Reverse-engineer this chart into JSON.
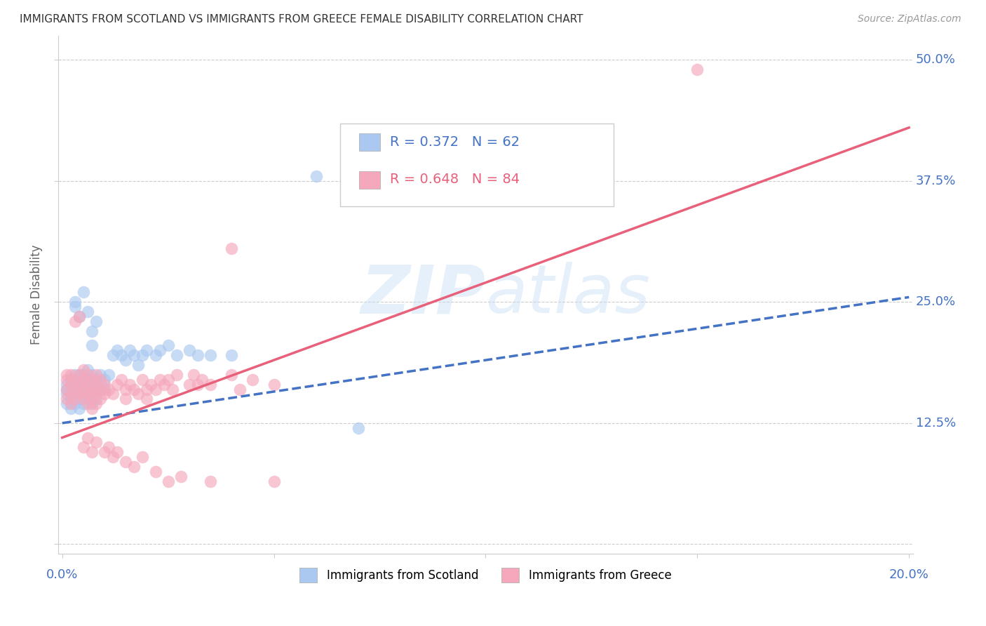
{
  "title": "IMMIGRANTS FROM SCOTLAND VS IMMIGRANTS FROM GREECE FEMALE DISABILITY CORRELATION CHART",
  "source": "Source: ZipAtlas.com",
  "ylabel_label": "Female Disability",
  "x_min": -0.001,
  "x_max": 0.201,
  "y_min": -0.01,
  "y_max": 0.525,
  "x_ticks": [
    0.0,
    0.05,
    0.1,
    0.15,
    0.2
  ],
  "y_ticks": [
    0.0,
    0.125,
    0.25,
    0.375,
    0.5
  ],
  "y_tick_labels": [
    "",
    "12.5%",
    "25.0%",
    "37.5%",
    "50.0%"
  ],
  "grid_color": "#cccccc",
  "background_color": "#ffffff",
  "scotland_color": "#aac8f0",
  "greece_color": "#f5a8bc",
  "scotland_line_color": "#4472c4",
  "greece_line_color": "#e8607a",
  "watermark": "ZIPatlas",
  "scotland_points": [
    [
      0.001,
      0.155
    ],
    [
      0.001,
      0.16
    ],
    [
      0.001,
      0.165
    ],
    [
      0.001,
      0.145
    ],
    [
      0.002,
      0.15
    ],
    [
      0.002,
      0.16
    ],
    [
      0.002,
      0.17
    ],
    [
      0.002,
      0.14
    ],
    [
      0.003,
      0.155
    ],
    [
      0.003,
      0.165
    ],
    [
      0.003,
      0.175
    ],
    [
      0.003,
      0.145
    ],
    [
      0.004,
      0.15
    ],
    [
      0.004,
      0.16
    ],
    [
      0.004,
      0.175
    ],
    [
      0.004,
      0.14
    ],
    [
      0.005,
      0.155
    ],
    [
      0.005,
      0.165
    ],
    [
      0.005,
      0.145
    ],
    [
      0.005,
      0.175
    ],
    [
      0.006,
      0.16
    ],
    [
      0.006,
      0.17
    ],
    [
      0.006,
      0.15
    ],
    [
      0.006,
      0.18
    ],
    [
      0.007,
      0.165
    ],
    [
      0.007,
      0.155
    ],
    [
      0.007,
      0.175
    ],
    [
      0.007,
      0.145
    ],
    [
      0.008,
      0.16
    ],
    [
      0.008,
      0.17
    ],
    [
      0.008,
      0.15
    ],
    [
      0.009,
      0.165
    ],
    [
      0.009,
      0.175
    ],
    [
      0.01,
      0.17
    ],
    [
      0.01,
      0.16
    ],
    [
      0.011,
      0.175
    ],
    [
      0.012,
      0.195
    ],
    [
      0.013,
      0.2
    ],
    [
      0.014,
      0.195
    ],
    [
      0.015,
      0.19
    ],
    [
      0.016,
      0.2
    ],
    [
      0.017,
      0.195
    ],
    [
      0.018,
      0.185
    ],
    [
      0.019,
      0.195
    ],
    [
      0.02,
      0.2
    ],
    [
      0.022,
      0.195
    ],
    [
      0.023,
      0.2
    ],
    [
      0.025,
      0.205
    ],
    [
      0.027,
      0.195
    ],
    [
      0.03,
      0.2
    ],
    [
      0.032,
      0.195
    ],
    [
      0.035,
      0.195
    ],
    [
      0.04,
      0.195
    ],
    [
      0.003,
      0.245
    ],
    [
      0.004,
      0.235
    ],
    [
      0.005,
      0.26
    ],
    [
      0.003,
      0.25
    ],
    [
      0.007,
      0.22
    ],
    [
      0.006,
      0.24
    ],
    [
      0.008,
      0.23
    ],
    [
      0.007,
      0.205
    ],
    [
      0.06,
      0.38
    ],
    [
      0.07,
      0.12
    ]
  ],
  "greece_points": [
    [
      0.001,
      0.16
    ],
    [
      0.001,
      0.17
    ],
    [
      0.001,
      0.15
    ],
    [
      0.001,
      0.175
    ],
    [
      0.002,
      0.155
    ],
    [
      0.002,
      0.165
    ],
    [
      0.002,
      0.175
    ],
    [
      0.002,
      0.145
    ],
    [
      0.003,
      0.16
    ],
    [
      0.003,
      0.17
    ],
    [
      0.003,
      0.15
    ],
    [
      0.003,
      0.23
    ],
    [
      0.004,
      0.155
    ],
    [
      0.004,
      0.165
    ],
    [
      0.004,
      0.175
    ],
    [
      0.004,
      0.235
    ],
    [
      0.005,
      0.16
    ],
    [
      0.005,
      0.15
    ],
    [
      0.005,
      0.17
    ],
    [
      0.005,
      0.18
    ],
    [
      0.006,
      0.155
    ],
    [
      0.006,
      0.165
    ],
    [
      0.006,
      0.145
    ],
    [
      0.006,
      0.175
    ],
    [
      0.007,
      0.16
    ],
    [
      0.007,
      0.15
    ],
    [
      0.007,
      0.17
    ],
    [
      0.007,
      0.14
    ],
    [
      0.008,
      0.155
    ],
    [
      0.008,
      0.165
    ],
    [
      0.008,
      0.145
    ],
    [
      0.008,
      0.175
    ],
    [
      0.009,
      0.16
    ],
    [
      0.009,
      0.15
    ],
    [
      0.009,
      0.17
    ],
    [
      0.01,
      0.155
    ],
    [
      0.01,
      0.165
    ],
    [
      0.011,
      0.16
    ],
    [
      0.012,
      0.155
    ],
    [
      0.013,
      0.165
    ],
    [
      0.014,
      0.17
    ],
    [
      0.015,
      0.16
    ],
    [
      0.015,
      0.15
    ],
    [
      0.016,
      0.165
    ],
    [
      0.017,
      0.16
    ],
    [
      0.018,
      0.155
    ],
    [
      0.019,
      0.17
    ],
    [
      0.02,
      0.16
    ],
    [
      0.02,
      0.15
    ],
    [
      0.021,
      0.165
    ],
    [
      0.022,
      0.16
    ],
    [
      0.023,
      0.17
    ],
    [
      0.024,
      0.165
    ],
    [
      0.025,
      0.17
    ],
    [
      0.026,
      0.16
    ],
    [
      0.027,
      0.175
    ],
    [
      0.03,
      0.165
    ],
    [
      0.031,
      0.175
    ],
    [
      0.032,
      0.165
    ],
    [
      0.033,
      0.17
    ],
    [
      0.035,
      0.165
    ],
    [
      0.04,
      0.175
    ],
    [
      0.042,
      0.16
    ],
    [
      0.045,
      0.17
    ],
    [
      0.05,
      0.165
    ],
    [
      0.005,
      0.1
    ],
    [
      0.006,
      0.11
    ],
    [
      0.007,
      0.095
    ],
    [
      0.008,
      0.105
    ],
    [
      0.01,
      0.095
    ],
    [
      0.011,
      0.1
    ],
    [
      0.012,
      0.09
    ],
    [
      0.013,
      0.095
    ],
    [
      0.015,
      0.085
    ],
    [
      0.017,
      0.08
    ],
    [
      0.019,
      0.09
    ],
    [
      0.022,
      0.075
    ],
    [
      0.025,
      0.065
    ],
    [
      0.028,
      0.07
    ],
    [
      0.035,
      0.065
    ],
    [
      0.05,
      0.065
    ],
    [
      0.04,
      0.305
    ],
    [
      0.15,
      0.49
    ]
  ],
  "scotland_reg": [
    0.0,
    0.125,
    0.2,
    0.255
  ],
  "greece_reg": [
    0.0,
    0.11,
    0.2,
    0.43
  ]
}
